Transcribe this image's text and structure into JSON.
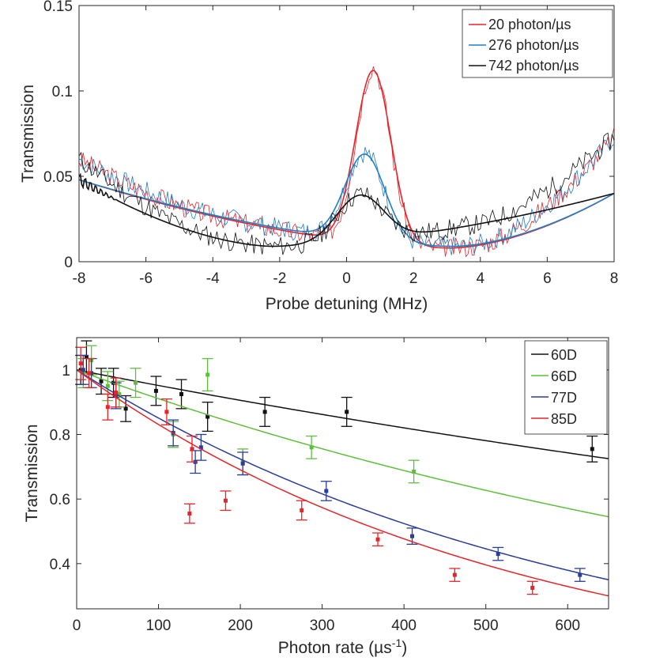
{
  "chart_data": [
    {
      "type": "line",
      "title": "",
      "xlabel": "Probe detuning (MHz)",
      "ylabel": "Transmission",
      "xlim": [
        -8,
        8
      ],
      "ylim": [
        0,
        0.15
      ],
      "xticks": [
        "-8",
        "-6",
        "-4",
        "-2",
        "0",
        "2",
        "4",
        "6",
        "8"
      ],
      "yticks": [
        "0",
        "0.05",
        "0.1",
        "0.15"
      ],
      "legend_position": "top-right",
      "series": [
        {
          "name": "20 photon/µs",
          "color": "#e8242b",
          "peak": 0.112,
          "peak_center": 0.8,
          "peak_width": 0.75,
          "base_min": 0.008,
          "base_min_pos": 3.1,
          "measured_noise_seed": 3
        },
        {
          "name": "276 photon/µs",
          "color": "#1f7fc7",
          "peak": 0.063,
          "peak_center": 0.55,
          "peak_width": 0.85,
          "base_min": 0.009,
          "base_min_pos": 3.2,
          "measured_noise_seed": 7
        },
        {
          "name": "742 photon/µs",
          "color": "#111111",
          "peak": 0.039,
          "peak_center": 0.4,
          "peak_width": 1.0,
          "base_min": 0.009,
          "base_min_pos": -2.2,
          "measured_noise_seed": 11
        }
      ],
      "measured_x_range": [
        -8,
        8
      ],
      "fit_x_range": [
        -8,
        8
      ],
      "fit_left_value": 0.048,
      "fit_right_value": 0.04,
      "measured_left_value": 0.06,
      "measured_right_value": 0.073
    },
    {
      "type": "scatter",
      "title": "",
      "xlabel": "Photon rate (µs",
      "xlabel_sup": "-1",
      "xlabel_close": ")",
      "ylabel": "Transmission",
      "xlim": [
        0,
        650
      ],
      "ylim": [
        0.26,
        1.1
      ],
      "xticks": [
        "0",
        "100",
        "200",
        "300",
        "400",
        "500",
        "600"
      ],
      "yticks": [
        "0.4",
        "0.6",
        "0.8",
        "1"
      ],
      "legend_position": "top-right",
      "series": [
        {
          "name": "60D",
          "color": "#111111",
          "fit_end": 0.725,
          "x": [
            5,
            12,
            30,
            45,
            60,
            97,
            128,
            160,
            230,
            330,
            630
          ],
          "y": [
            1.0,
            1.04,
            0.965,
            0.96,
            0.88,
            0.935,
            0.925,
            0.855,
            0.87,
            0.87,
            0.755
          ],
          "err": [
            0.045,
            0.05,
            0.04,
            0.045,
            0.04,
            0.045,
            0.045,
            0.045,
            0.045,
            0.045,
            0.04
          ]
        },
        {
          "name": "66D",
          "color": "#5fbf3d",
          "fit_end": 0.545,
          "x": [
            8,
            18,
            38,
            52,
            72,
            118,
            160,
            203,
            287,
            412
          ],
          "y": [
            0.99,
            1.03,
            0.95,
            0.925,
            0.96,
            0.8,
            0.985,
            0.715,
            0.76,
            0.685
          ],
          "err": [
            0.045,
            0.045,
            0.045,
            0.04,
            0.045,
            0.04,
            0.05,
            0.04,
            0.035,
            0.035
          ]
        },
        {
          "name": "77D",
          "color": "#2b3d9c",
          "fit_end": 0.35,
          "x": [
            8,
            18,
            48,
            118,
            145,
            152,
            203,
            305,
            410,
            515,
            615
          ],
          "y": [
            1.0,
            0.99,
            0.92,
            0.805,
            0.715,
            0.76,
            0.71,
            0.625,
            0.485,
            0.43,
            0.365
          ],
          "err": [
            0.045,
            0.045,
            0.04,
            0.04,
            0.035,
            0.04,
            0.035,
            0.03,
            0.025,
            0.02,
            0.02
          ]
        },
        {
          "name": "85D",
          "color": "#e8242b",
          "fit_end": 0.3,
          "x": [
            5,
            15,
            38,
            48,
            110,
            138,
            141,
            182,
            275,
            368,
            462,
            557
          ],
          "y": [
            1.02,
            0.99,
            0.885,
            0.93,
            0.87,
            0.555,
            0.755,
            0.595,
            0.565,
            0.475,
            0.365,
            0.325
          ],
          "err": [
            0.05,
            0.045,
            0.04,
            0.045,
            0.04,
            0.03,
            0.04,
            0.03,
            0.03,
            0.02,
            0.02,
            0.02
          ]
        }
      ]
    }
  ]
}
